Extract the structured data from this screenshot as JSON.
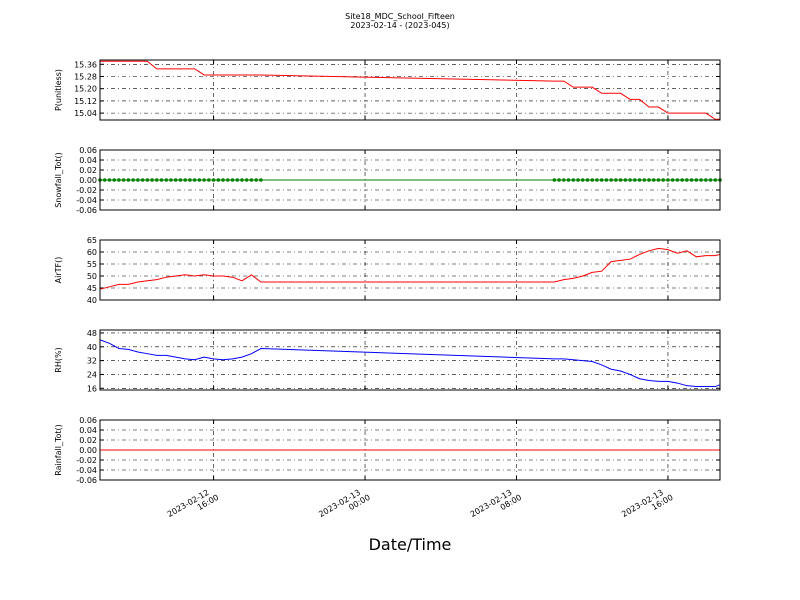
{
  "chart_data": [
    {
      "type": "line",
      "title": "Site18_MDC_School_Fifteen",
      "subtitle": "2023-02-14 - (2023-045)",
      "ylabel": "P(unitless)",
      "color": "#ff0000",
      "grid": true,
      "x": [
        "2023-02-12 10:00",
        "2023-02-12 10:30",
        "2023-02-12 11:00",
        "2023-02-12 11:30",
        "2023-02-12 12:00",
        "2023-02-12 12:30",
        "2023-02-12 13:00",
        "2023-02-12 13:30",
        "2023-02-12 14:00",
        "2023-02-12 14:30",
        "2023-02-12 15:00",
        "2023-02-12 15:30",
        "2023-02-12 16:00",
        "2023-02-12 16:30",
        "2023-02-12 17:00",
        "2023-02-12 17:30",
        "2023-02-12 18:00",
        "2023-02-12 18:30",
        "2023-02-13 10:00",
        "2023-02-13 10:30",
        "2023-02-13 11:00",
        "2023-02-13 11:30",
        "2023-02-13 12:00",
        "2023-02-13 12:30",
        "2023-02-13 13:00",
        "2023-02-13 13:30",
        "2023-02-13 14:00",
        "2023-02-13 14:30",
        "2023-02-13 15:00",
        "2023-02-13 15:30",
        "2023-02-13 16:00",
        "2023-02-13 16:30",
        "2023-02-13 17:00",
        "2023-02-13 17:30",
        "2023-02-13 18:00",
        "2023-02-13 18:30",
        "2023-02-13 18:45"
      ],
      "values": [
        15.38,
        15.38,
        15.38,
        15.38,
        15.38,
        15.38,
        15.33,
        15.33,
        15.33,
        15.33,
        15.33,
        15.29,
        15.29,
        15.29,
        15.29,
        15.29,
        15.29,
        15.29,
        15.25,
        15.25,
        15.21,
        15.21,
        15.21,
        15.17,
        15.17,
        15.17,
        15.13,
        15.13,
        15.08,
        15.08,
        15.04,
        15.04,
        15.04,
        15.04,
        15.04,
        15.0,
        15.0
      ],
      "xlim": [
        "2023-02-12 10:00",
        "2023-02-13 18:45"
      ],
      "xticks": [
        "2023-02-12 16:00",
        "2023-02-13 00:00",
        "2023-02-13 08:00",
        "2023-02-13 16:00"
      ],
      "ylim": [
        14.995,
        15.388
      ],
      "yticks": [
        15.04,
        {
          "value": 15.12,
          "label": "15.12"
        },
        {
          "value": 15.2,
          "label": "15.20"
        },
        15.28,
        15.36
      ]
    },
    {
      "type": "line",
      "ylabel": "Snowfall_Tot()",
      "color": "#008000",
      "marker": "o",
      "grid": true,
      "x": [
        "2023-02-12 10:00",
        "2023-02-12 10:15",
        "2023-02-12 10:30",
        "2023-02-12 10:45",
        "2023-02-12 11:00",
        "2023-02-12 11:15",
        "2023-02-12 11:30",
        "2023-02-12 11:45",
        "2023-02-12 12:00",
        "2023-02-12 12:15",
        "2023-02-12 12:30",
        "2023-02-12 12:45",
        "2023-02-12 13:00",
        "2023-02-12 13:15",
        "2023-02-12 13:30",
        "2023-02-12 13:45",
        "2023-02-12 14:00",
        "2023-02-12 14:15",
        "2023-02-12 14:30",
        "2023-02-12 14:45",
        "2023-02-12 15:00",
        "2023-02-12 15:15",
        "2023-02-12 15:30",
        "2023-02-12 15:45",
        "2023-02-12 16:00",
        "2023-02-12 16:15",
        "2023-02-12 16:30",
        "2023-02-12 16:45",
        "2023-02-12 17:00",
        "2023-02-12 17:15",
        "2023-02-12 17:30",
        "2023-02-12 17:45",
        "2023-02-12 18:00",
        "2023-02-12 18:15",
        "2023-02-12 18:30",
        "2023-02-13 10:00",
        "2023-02-13 10:15",
        "2023-02-13 10:30",
        "2023-02-13 10:45",
        "2023-02-13 11:00",
        "2023-02-13 11:15",
        "2023-02-13 11:30",
        "2023-02-13 11:45",
        "2023-02-13 12:00",
        "2023-02-13 12:15",
        "2023-02-13 12:30",
        "2023-02-13 12:45",
        "2023-02-13 13:00",
        "2023-02-13 13:15",
        "2023-02-13 13:30",
        "2023-02-13 13:45",
        "2023-02-13 14:00",
        "2023-02-13 14:15",
        "2023-02-13 14:30",
        "2023-02-13 14:45",
        "2023-02-13 15:00",
        "2023-02-13 15:15",
        "2023-02-13 15:30",
        "2023-02-13 15:45",
        "2023-02-13 16:00",
        "2023-02-13 16:15",
        "2023-02-13 16:30",
        "2023-02-13 16:45",
        "2023-02-13 17:00",
        "2023-02-13 17:15",
        "2023-02-13 17:30",
        "2023-02-13 17:45",
        "2023-02-13 18:00",
        "2023-02-13 18:15",
        "2023-02-13 18:30",
        "2023-02-13 18:45"
      ],
      "values": [
        0,
        0,
        0,
        0,
        0,
        0,
        0,
        0,
        0,
        0,
        0,
        0,
        0,
        0,
        0,
        0,
        0,
        0,
        0,
        0,
        0,
        0,
        0,
        0,
        0,
        0,
        0,
        0,
        0,
        0,
        0,
        0,
        0,
        0,
        0,
        0,
        0,
        0,
        0,
        0,
        0,
        0,
        0,
        0,
        0,
        0,
        0,
        0,
        0,
        0,
        0,
        0,
        0,
        0,
        0,
        0,
        0,
        0,
        0,
        0,
        0,
        0,
        0,
        0,
        0,
        0,
        0,
        0,
        0,
        0,
        0
      ],
      "xlim": [
        "2023-02-12 10:00",
        "2023-02-13 18:45"
      ],
      "xticks": [
        "2023-02-12 16:00",
        "2023-02-13 00:00",
        "2023-02-13 08:00",
        "2023-02-13 16:00"
      ],
      "ylim": [
        -0.06,
        0.06
      ],
      "yticks": [
        -0.06,
        -0.04,
        -0.02,
        {
          "value": 0,
          "label": "0.00"
        },
        0.02,
        0.04,
        0.06
      ]
    },
    {
      "type": "line",
      "ylabel": "AirTF()",
      "color": "#ff0000",
      "grid": true,
      "x": [
        "2023-02-12 10:00",
        "2023-02-12 10:30",
        "2023-02-12 11:00",
        "2023-02-12 11:30",
        "2023-02-12 12:00",
        "2023-02-12 12:30",
        "2023-02-12 13:00",
        "2023-02-12 13:30",
        "2023-02-12 14:00",
        "2023-02-12 14:30",
        "2023-02-12 15:00",
        "2023-02-12 15:30",
        "2023-02-12 16:00",
        "2023-02-12 16:30",
        "2023-02-12 17:00",
        "2023-02-12 17:30",
        "2023-02-12 18:00",
        "2023-02-12 18:30",
        "2023-02-13 10:00",
        "2023-02-13 10:30",
        "2023-02-13 11:00",
        "2023-02-13 11:30",
        "2023-02-13 12:00",
        "2023-02-13 12:30",
        "2023-02-13 13:00",
        "2023-02-13 13:30",
        "2023-02-13 14:00",
        "2023-02-13 14:30",
        "2023-02-13 15:00",
        "2023-02-13 15:30",
        "2023-02-13 16:00",
        "2023-02-13 16:30",
        "2023-02-13 17:00",
        "2023-02-13 17:30",
        "2023-02-13 18:00",
        "2023-02-13 18:30",
        "2023-02-13 18:45"
      ],
      "values": [
        44.5,
        45.5,
        46.5,
        46.5,
        47.5,
        48,
        48.5,
        49.5,
        50,
        50.5,
        50,
        50.5,
        50,
        50,
        49.5,
        48,
        50.5,
        47.5,
        47.5,
        48.5,
        49,
        50,
        51.5,
        52,
        56,
        56.5,
        57,
        59,
        60.5,
        61.5,
        61,
        59.5,
        60.5,
        58,
        58.5,
        58.5,
        59
      ],
      "xlim": [
        "2023-02-12 10:00",
        "2023-02-13 18:45"
      ],
      "xticks": [
        "2023-02-12 16:00",
        "2023-02-13 00:00",
        "2023-02-13 08:00",
        "2023-02-13 16:00"
      ],
      "ylim": [
        40,
        65
      ],
      "yticks": [
        40,
        45,
        50,
        55,
        60,
        65
      ]
    },
    {
      "type": "line",
      "ylabel": "RH(%)",
      "color": "#0000ff",
      "grid": true,
      "x": [
        "2023-02-12 10:00",
        "2023-02-12 10:30",
        "2023-02-12 11:00",
        "2023-02-12 11:30",
        "2023-02-12 12:00",
        "2023-02-12 12:30",
        "2023-02-12 13:00",
        "2023-02-12 13:30",
        "2023-02-12 14:00",
        "2023-02-12 14:30",
        "2023-02-12 15:00",
        "2023-02-12 15:30",
        "2023-02-12 16:00",
        "2023-02-12 16:30",
        "2023-02-12 17:00",
        "2023-02-12 17:30",
        "2023-02-12 18:00",
        "2023-02-12 18:30",
        "2023-02-13 10:00",
        "2023-02-13 10:30",
        "2023-02-13 11:00",
        "2023-02-13 11:30",
        "2023-02-13 12:00",
        "2023-02-13 12:30",
        "2023-02-13 13:00",
        "2023-02-13 13:30",
        "2023-02-13 14:00",
        "2023-02-13 14:30",
        "2023-02-13 15:00",
        "2023-02-13 15:30",
        "2023-02-13 16:00",
        "2023-02-13 16:30",
        "2023-02-13 17:00",
        "2023-02-13 17:30",
        "2023-02-13 18:00",
        "2023-02-13 18:30",
        "2023-02-13 18:45"
      ],
      "values": [
        44,
        42,
        39,
        38.5,
        37,
        36,
        35,
        35,
        34,
        33,
        32.5,
        34,
        33,
        32.5,
        33,
        34,
        36,
        39,
        33,
        33,
        32.5,
        32,
        31.5,
        29.5,
        27,
        26,
        24,
        21.5,
        20.5,
        20,
        20,
        19,
        17.5,
        17,
        17,
        17,
        18
      ],
      "xlim": [
        "2023-02-12 10:00",
        "2023-02-13 18:45"
      ],
      "xticks": [
        "2023-02-12 16:00",
        "2023-02-13 00:00",
        "2023-02-13 08:00",
        "2023-02-13 16:00"
      ],
      "ylim": [
        15,
        49.7
      ],
      "yticks": [
        16,
        24,
        32,
        40,
        48
      ]
    },
    {
      "type": "line",
      "ylabel": "Rainfall_Tot()",
      "xlabel": "Date/Time",
      "color": "#ff0000",
      "grid": true,
      "x": [
        "2023-02-12 10:00",
        "2023-02-12 10:30",
        "2023-02-12 11:00",
        "2023-02-12 11:30",
        "2023-02-12 12:00",
        "2023-02-12 12:30",
        "2023-02-12 13:00",
        "2023-02-12 13:30",
        "2023-02-12 14:00",
        "2023-02-12 14:30",
        "2023-02-12 15:00",
        "2023-02-12 15:30",
        "2023-02-12 16:00",
        "2023-02-12 16:30",
        "2023-02-12 17:00",
        "2023-02-12 17:30",
        "2023-02-12 18:00",
        "2023-02-12 18:30",
        "2023-02-13 10:00",
        "2023-02-13 10:30",
        "2023-02-13 11:00",
        "2023-02-13 11:30",
        "2023-02-13 12:00",
        "2023-02-13 12:30",
        "2023-02-13 13:00",
        "2023-02-13 13:30",
        "2023-02-13 14:00",
        "2023-02-13 14:30",
        "2023-02-13 15:00",
        "2023-02-13 15:30",
        "2023-02-13 16:00",
        "2023-02-13 16:30",
        "2023-02-13 17:00",
        "2023-02-13 17:30",
        "2023-02-13 18:00",
        "2023-02-13 18:30",
        "2023-02-13 18:45"
      ],
      "values": [
        0,
        0,
        0,
        0,
        0,
        0,
        0,
        0,
        0,
        0,
        0,
        0,
        0,
        0,
        0,
        0,
        0,
        0,
        0,
        0,
        0,
        0,
        0,
        0,
        0,
        0,
        0,
        0,
        0,
        0,
        0,
        0,
        0,
        0,
        0,
        0,
        0
      ],
      "xlim": [
        "2023-02-12 10:00",
        "2023-02-13 18:45"
      ],
      "xticks": [
        "2023-02-12 16:00",
        "2023-02-13 00:00",
        "2023-02-13 08:00",
        "2023-02-13 16:00"
      ],
      "ylim": [
        -0.06,
        0.06
      ],
      "yticks": [
        -0.06,
        -0.04,
        -0.02,
        {
          "value": 0,
          "label": "0.00"
        },
        0.02,
        0.04,
        0.06
      ]
    }
  ]
}
